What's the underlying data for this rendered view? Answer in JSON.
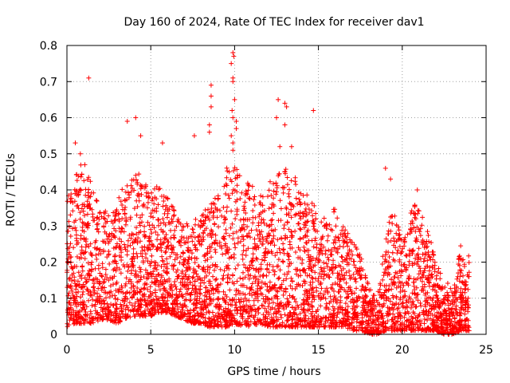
{
  "chart_data": {
    "type": "scatter",
    "title": "Day 160 of 2024, Rate Of TEC Index for receiver dav1",
    "xlabel": "GPS time / hours",
    "ylabel": "ROTI / TECUs",
    "xlim": [
      0,
      25
    ],
    "ylim": [
      0,
      0.8
    ],
    "xticks": [
      0,
      5,
      10,
      15,
      20,
      25
    ],
    "yticks": [
      0,
      0.1,
      0.2,
      0.3,
      0.4,
      0.5,
      0.6,
      0.7,
      0.8
    ],
    "xtick_labels": [
      "0",
      "5",
      "10",
      "15",
      "20",
      "25"
    ],
    "ytick_labels": [
      "0",
      "0.1",
      "0.2",
      "0.3",
      "0.4",
      "0.5",
      "0.6",
      "0.7",
      "0.8"
    ],
    "grid": true,
    "marker": "plus",
    "marker_color": "#ff0000",
    "envelope": {
      "description": "Approximate per-hour upper extent of the dense ROTI point cloud (data units), sampled every 0.5 h",
      "x": [
        0,
        0.5,
        1,
        1.5,
        2,
        2.5,
        3,
        3.5,
        4,
        4.5,
        5,
        5.5,
        6,
        6.5,
        7,
        7.5,
        8,
        8.5,
        9,
        9.5,
        10,
        10.5,
        11,
        11.5,
        12,
        12.5,
        13,
        13.5,
        14,
        14.5,
        15,
        15.5,
        16,
        16.5,
        17,
        17.5,
        18,
        18.5,
        19,
        19.5,
        20,
        20.5,
        21,
        21.5,
        22,
        22.5,
        23,
        23.5,
        24
      ],
      "y_max": [
        0.38,
        0.45,
        0.48,
        0.42,
        0.36,
        0.34,
        0.38,
        0.42,
        0.45,
        0.44,
        0.4,
        0.42,
        0.38,
        0.34,
        0.3,
        0.32,
        0.33,
        0.36,
        0.42,
        0.46,
        0.48,
        0.44,
        0.42,
        0.38,
        0.42,
        0.44,
        0.46,
        0.45,
        0.4,
        0.38,
        0.34,
        0.33,
        0.36,
        0.3,
        0.28,
        0.22,
        0.14,
        0.1,
        0.28,
        0.36,
        0.25,
        0.34,
        0.38,
        0.3,
        0.2,
        0.16,
        0.12,
        0.25,
        0.22
      ],
      "y_min": [
        0.02,
        0.03,
        0.03,
        0.03,
        0.04,
        0.04,
        0.03,
        0.04,
        0.05,
        0.05,
        0.05,
        0.06,
        0.06,
        0.05,
        0.04,
        0.03,
        0.03,
        0.02,
        0.02,
        0.02,
        0.03,
        0.02,
        0.02,
        0.03,
        0.02,
        0.02,
        0.02,
        0.02,
        0.02,
        0.02,
        0.02,
        0.02,
        0.02,
        0.02,
        0.01,
        0.01,
        0.0,
        0.0,
        0.01,
        0.01,
        0.01,
        0.01,
        0.01,
        0.01,
        0.01,
        0.0,
        0.0,
        0.01,
        0.01
      ]
    },
    "outliers": [
      {
        "x": 1.3,
        "y": 0.71
      },
      {
        "x": 0.5,
        "y": 0.53
      },
      {
        "x": 0.8,
        "y": 0.5
      },
      {
        "x": 3.6,
        "y": 0.59
      },
      {
        "x": 4.1,
        "y": 0.6
      },
      {
        "x": 4.4,
        "y": 0.55
      },
      {
        "x": 5.7,
        "y": 0.53
      },
      {
        "x": 8.6,
        "y": 0.69
      },
      {
        "x": 8.6,
        "y": 0.66
      },
      {
        "x": 8.6,
        "y": 0.63
      },
      {
        "x": 8.5,
        "y": 0.58
      },
      {
        "x": 8.5,
        "y": 0.56
      },
      {
        "x": 9.9,
        "y": 0.78
      },
      {
        "x": 9.95,
        "y": 0.77
      },
      {
        "x": 9.8,
        "y": 0.75
      },
      {
        "x": 9.9,
        "y": 0.71
      },
      {
        "x": 9.9,
        "y": 0.7
      },
      {
        "x": 10.0,
        "y": 0.65
      },
      {
        "x": 9.85,
        "y": 0.62
      },
      {
        "x": 9.9,
        "y": 0.6
      },
      {
        "x": 10.1,
        "y": 0.59
      },
      {
        "x": 10.1,
        "y": 0.57
      },
      {
        "x": 9.8,
        "y": 0.55
      },
      {
        "x": 9.9,
        "y": 0.53
      },
      {
        "x": 9.9,
        "y": 0.51
      },
      {
        "x": 12.6,
        "y": 0.65
      },
      {
        "x": 13.0,
        "y": 0.64
      },
      {
        "x": 13.1,
        "y": 0.63
      },
      {
        "x": 12.5,
        "y": 0.6
      },
      {
        "x": 13.0,
        "y": 0.58
      },
      {
        "x": 12.7,
        "y": 0.52
      },
      {
        "x": 14.7,
        "y": 0.62
      },
      {
        "x": 13.4,
        "y": 0.52
      },
      {
        "x": 7.6,
        "y": 0.55
      },
      {
        "x": 19.0,
        "y": 0.46
      },
      {
        "x": 19.3,
        "y": 0.43
      },
      {
        "x": 20.9,
        "y": 0.4
      }
    ]
  }
}
